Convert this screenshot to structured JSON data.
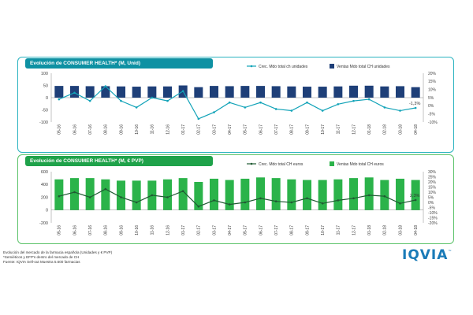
{
  "footer": {
    "line1": "Evolución del mercado de la farmacia española (Unidades y € PVP)",
    "line2": "*Semiéticos y EFP's dentro del mercado de CH",
    "line3": "Fuente: IQVIA Sell-out Muestra 5.600 farmacias"
  },
  "logo": {
    "text": "IQVIA",
    "tm": "™"
  },
  "colors": {
    "teal": "#12a3b8",
    "navy": "#1e3f78",
    "green": "#2bb34a",
    "darkgreen": "#1f5a32"
  },
  "chart_data": [
    {
      "type": "bar",
      "title": "Evolución de CONSUMER HEALTH* (M, Unid)",
      "categories": [
        "05-16",
        "06-16",
        "07-16",
        "08-16",
        "09-16",
        "10-16",
        "11-16",
        "12-16",
        "01-17",
        "02-17",
        "03-17",
        "04-17",
        "05-17",
        "06-17",
        "07-17",
        "08-17",
        "09-17",
        "10-17",
        "11-17",
        "12-17",
        "01-18",
        "02-18",
        "03-18",
        "04-18"
      ],
      "ylim": [
        -100,
        100
      ],
      "yticks": [
        "100",
        "50",
        "0",
        "-50",
        "-100"
      ],
      "y2lim": [
        -10,
        20
      ],
      "y2ticks": [
        "20%",
        "15%",
        "10%",
        "5%",
        "0%",
        "-5%",
        "-10%"
      ],
      "series": [
        {
          "name": "Ventas Mdo total CH unidades",
          "kind": "bar",
          "values": [
            48,
            48,
            47,
            47,
            46,
            45,
            46,
            46,
            50,
            43,
            48,
            47,
            48,
            48,
            47,
            46,
            45,
            45,
            46,
            49,
            49,
            46,
            47,
            43
          ]
        },
        {
          "name": "Crec. Mdo total ch unidades",
          "kind": "line",
          "values": [
            4,
            8,
            3,
            12,
            3,
            -1,
            5,
            3,
            9,
            -8,
            -4,
            2,
            -1,
            2,
            -2,
            -3,
            2,
            -3,
            1,
            3,
            4,
            -1,
            -3,
            -1.3
          ]
        }
      ],
      "annotation": "-1,3%",
      "legend": "top-right"
    },
    {
      "type": "bar",
      "title": "Evolución de CONSUMER HEALTH* (M, € PVP)",
      "categories": [
        "05-16",
        "06-16",
        "07-16",
        "08-16",
        "09-16",
        "10-16",
        "11-16",
        "12-16",
        "01-17",
        "02-17",
        "03-17",
        "04-17",
        "05-17",
        "06-17",
        "07-17",
        "08-17",
        "09-17",
        "10-17",
        "11-17",
        "12-17",
        "01-18",
        "02-18",
        "03-18",
        "04-18"
      ],
      "ylim": [
        -200,
        600
      ],
      "yticks": [
        "600",
        "400",
        "200",
        "0",
        "-200"
      ],
      "y2lim": [
        -20,
        30
      ],
      "y2ticks": [
        "30%",
        "25%",
        "20%",
        "15%",
        "10%",
        "5%",
        "0%",
        "-5%",
        "-10%",
        "-15%",
        "-20%"
      ],
      "series": [
        {
          "name": "Ventas Mdo total CH euros",
          "kind": "bar",
          "values": [
            480,
            500,
            500,
            480,
            460,
            460,
            460,
            480,
            500,
            440,
            490,
            470,
            490,
            510,
            500,
            480,
            470,
            470,
            480,
            500,
            510,
            470,
            490,
            470
          ]
        },
        {
          "name": "Crec. Mdo total CH euros",
          "kind": "line",
          "values": [
            6,
            10,
            5,
            13,
            5,
            0,
            7,
            5,
            11,
            -4,
            2,
            -2,
            0,
            4,
            1,
            0,
            4,
            -1,
            2,
            4,
            7,
            6,
            -1,
            2.3
          ]
        }
      ],
      "annotation": "2,3%",
      "legend": "top-right"
    }
  ]
}
